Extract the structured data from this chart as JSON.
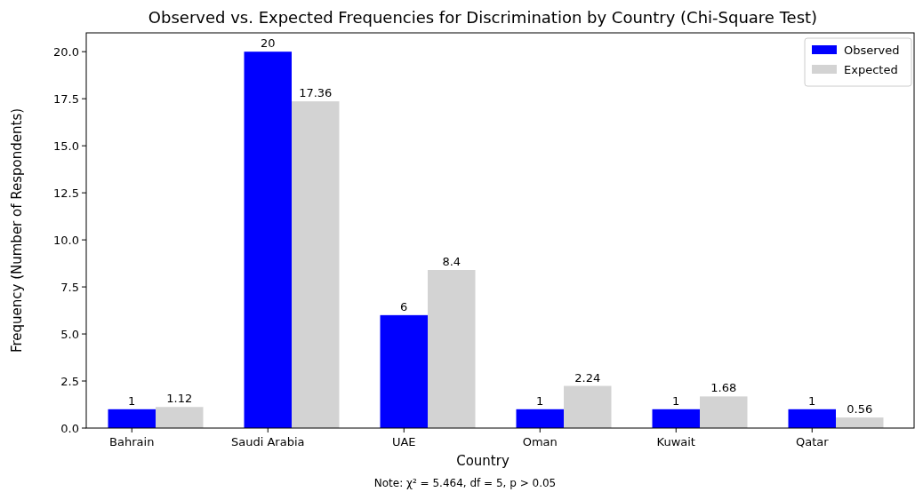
{
  "chart_data": {
    "type": "bar",
    "title": "Observed vs. Expected Frequencies for Discrimination by Country (Chi-Square Test)",
    "xlabel": "Country",
    "ylabel": "Frequency (Number of Respondents)",
    "categories": [
      "Bahrain",
      "Saudi Arabia",
      "UAE",
      "Oman",
      "Kuwait",
      "Qatar"
    ],
    "series": [
      {
        "name": "Observed",
        "color": "#0000ff",
        "values": [
          1,
          20,
          6,
          1,
          1,
          1
        ]
      },
      {
        "name": "Expected",
        "color": "#d3d3d3",
        "values": [
          1.12,
          17.36,
          8.4,
          2.24,
          1.68,
          0.56
        ]
      }
    ],
    "ylim": [
      0,
      21
    ],
    "yticks": [
      {
        "value": 0,
        "label": "0.0"
      },
      {
        "value": 2.5,
        "label": "2.5"
      },
      {
        "value": 5,
        "label": "5.0"
      },
      {
        "value": 7.5,
        "label": "7.5"
      },
      {
        "value": 10,
        "label": "10.0"
      },
      {
        "value": 12.5,
        "label": "12.5"
      },
      {
        "value": 15,
        "label": "15.0"
      },
      {
        "value": 17.5,
        "label": "17.5"
      },
      {
        "value": 20,
        "label": "20.0"
      }
    ],
    "data_labels": true,
    "legend": "top right",
    "grid": false,
    "annotations": [
      "Note: χ² = 5.464, df = 5, p > 0.05"
    ]
  }
}
